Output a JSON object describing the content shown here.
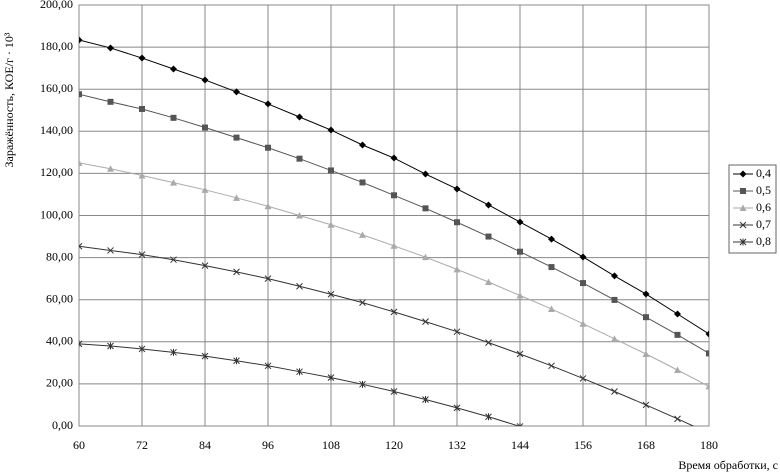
{
  "chart_data": {
    "type": "line",
    "x_label": "Время обработки, с",
    "y_label": "Заражённость, КОЕ/г · 10³",
    "x": [
      60,
      66,
      72,
      78,
      84,
      90,
      96,
      102,
      108,
      114,
      120,
      126,
      132,
      138,
      144,
      150,
      156,
      162,
      168,
      174,
      180
    ],
    "xlim": [
      60,
      180
    ],
    "xticks": [
      60,
      72,
      84,
      96,
      108,
      120,
      132,
      144,
      156,
      168,
      180
    ],
    "ylim": [
      0,
      200
    ],
    "yticks": [
      {
        "value": 0,
        "label": "0,00"
      },
      {
        "value": 20,
        "label": "20,00"
      },
      {
        "value": 40,
        "label": "40,00"
      },
      {
        "value": 60,
        "label": "60,00"
      },
      {
        "value": 80,
        "label": "80,00"
      },
      {
        "value": 100,
        "label": "100,00"
      },
      {
        "value": 120,
        "label": "120,00"
      },
      {
        "value": 140,
        "label": "140,00"
      },
      {
        "value": 160,
        "label": "160,00"
      },
      {
        "value": 180,
        "label": "180,00"
      },
      {
        "value": 200,
        "label": "200,00"
      }
    ],
    "grid": true,
    "legend": "right",
    "series": [
      {
        "name": "0,4",
        "color": "#000000",
        "marker": "diamond",
        "values": [
          183.4,
          179.6,
          174.8,
          169.6,
          164.4,
          158.7,
          153,
          146.8,
          140.6,
          133.5,
          127.3,
          119.7,
          112.6,
          105,
          96.9,
          88.8,
          80.3,
          71.3,
          62.7,
          53.2,
          43.7
        ]
      },
      {
        "name": "0,5",
        "color": "#555555",
        "marker": "square",
        "values": [
          157.6,
          154,
          150.6,
          146.4,
          141.8,
          137,
          132.2,
          127,
          121.4,
          115.7,
          109.6,
          103.4,
          96.8,
          90,
          82.8,
          75.5,
          67.9,
          59.9,
          51.7,
          43.3,
          34.5
        ]
      },
      {
        "name": "0,6",
        "color": "#aaaaaa",
        "marker": "triangle",
        "values": [
          125,
          122.2,
          119,
          115.6,
          112.2,
          108.4,
          104.4,
          100,
          95.6,
          90.8,
          85.6,
          80.2,
          74.4,
          68.4,
          62,
          55.6,
          48.6,
          41.4,
          34.2,
          26.6,
          18.8
        ]
      },
      {
        "name": "0,7",
        "color": "#333333",
        "marker": "x",
        "values": [
          85.4,
          83.4,
          81.4,
          79,
          76.2,
          73.2,
          70,
          66.4,
          62.6,
          58.6,
          54.2,
          49.6,
          44.8,
          39.6,
          34.2,
          28.6,
          22.6,
          16.4,
          10,
          3.4,
          -3.4
        ]
      },
      {
        "name": "0,8",
        "color": "#333333",
        "marker": "asterisk",
        "values": [
          39,
          38,
          36.6,
          35,
          33.2,
          31,
          28.6,
          25.8,
          23,
          19.8,
          16.4,
          12.6,
          8.6,
          4.4,
          -0.2,
          null,
          null,
          null,
          null,
          null,
          null
        ]
      }
    ]
  }
}
